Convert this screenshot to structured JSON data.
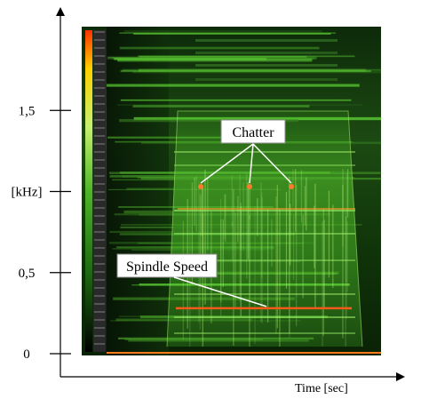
{
  "chart_data": {
    "type": "heatmap",
    "title": "",
    "xlabel": "Time [sec]",
    "ylabel": "[kHz]",
    "ylim": [
      0,
      2.0
    ],
    "y_ticks": [
      {
        "value": 0,
        "label": "0"
      },
      {
        "value": 0.5,
        "label": "0,5"
      },
      {
        "value": 1.0,
        "label": "[kHz]"
      },
      {
        "value": 1.5,
        "label": "1,5"
      }
    ],
    "grid": false,
    "colormap": [
      "#000000",
      "#0a2a06",
      "#1f6a12",
      "#4fb52a",
      "#c8f070",
      "#ffd000",
      "#ff3000"
    ],
    "annotations": [
      {
        "label": "Chatter",
        "points_y": [
          1.03,
          1.03,
          1.03
        ]
      },
      {
        "label": "Spindle Speed",
        "points_y": [
          0.28
        ]
      }
    ],
    "spindle_speed_khz": 0.28,
    "chatter_khz": 1.03
  }
}
